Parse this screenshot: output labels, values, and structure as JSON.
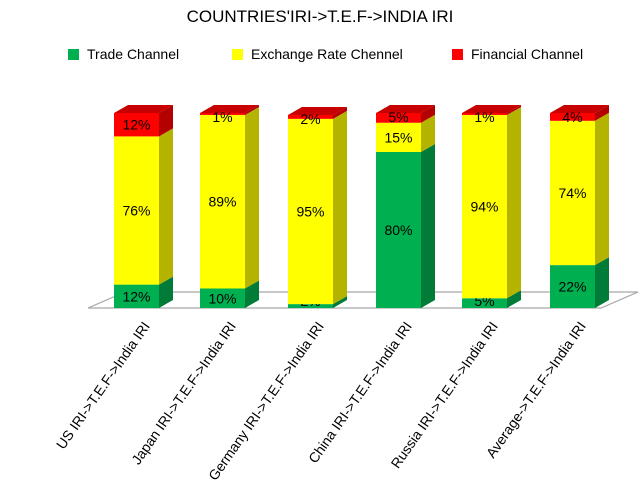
{
  "chart_data": {
    "type": "bar",
    "stacked": true,
    "three_d": true,
    "title": "COUNTRIES'IRI->T.E.F->INDIA IRI",
    "xlabel": "",
    "ylabel": "",
    "ylim": [
      0,
      100
    ],
    "grid": false,
    "legend_position": "top",
    "categories": [
      "US IRI->T.E.F->India IRI",
      "Japan IRI->T.E.F->India IRI",
      "Germany IRI->T.E.F->India  IRI",
      "China IRI->T.E.F->India IRI",
      "Russia IRI->T.E.F->India IRI",
      "Average->T.E.F->India IRI"
    ],
    "series": [
      {
        "name": "Trade Channel",
        "color": "#00b050",
        "values": [
          12,
          10,
          2,
          80,
          5,
          22
        ]
      },
      {
        "name": "Exchange Rate Chennel",
        "color": "#ffff00",
        "values": [
          76,
          89,
          95,
          15,
          94,
          74
        ]
      },
      {
        "name": "Financial Channel",
        "color": "#ff0000",
        "values": [
          12,
          1,
          2,
          5,
          1,
          4
        ]
      }
    ],
    "data_labels": [
      [
        "12%",
        "10%",
        "2%",
        "80%",
        "5%",
        "22%"
      ],
      [
        "76%",
        "89%",
        "95%",
        "15%",
        "94%",
        "74%"
      ],
      [
        "12%",
        "1%",
        "2%",
        "5%",
        "1%",
        "4%"
      ]
    ]
  }
}
